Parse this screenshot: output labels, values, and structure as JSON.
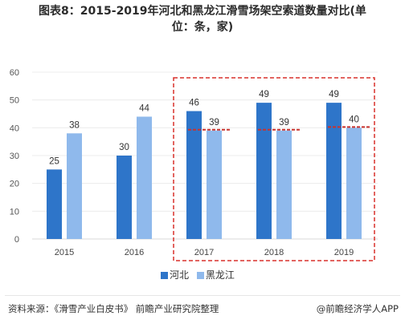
{
  "title_line1": "图表8：2015-2019年河北和黑龙江滑雪场架空索道数量对比(单",
  "title_line2": "位：条，家)",
  "source": "资料来源：《滑雪产业白皮书》 前瞻产业研究院整理",
  "brand": "@前瞻经济学人APP",
  "colors": {
    "hebei": "#2e75c9",
    "heilongjiang": "#8fb9ec",
    "highlight": "#d9312b",
    "dashline": "#c8332e"
  },
  "chart_data": {
    "type": "bar",
    "title": "2015-2019年河北和黑龙江滑雪场架空索道数量对比(单位：条，家)",
    "categories": [
      "2015",
      "2016",
      "2017",
      "2018",
      "2019"
    ],
    "series": [
      {
        "name": "河北",
        "values": [
          25,
          30,
          46,
          49,
          49
        ]
      },
      {
        "name": "黑龙江",
        "values": [
          38,
          44,
          39,
          39,
          40
        ]
      }
    ],
    "ylim": [
      0,
      60
    ],
    "yticks": [
      "0",
      "10",
      "20",
      "30",
      "40",
      "50",
      "60"
    ],
    "highlight_categories": [
      "2017",
      "2018",
      "2019"
    ],
    "legend_position": "bottom"
  }
}
